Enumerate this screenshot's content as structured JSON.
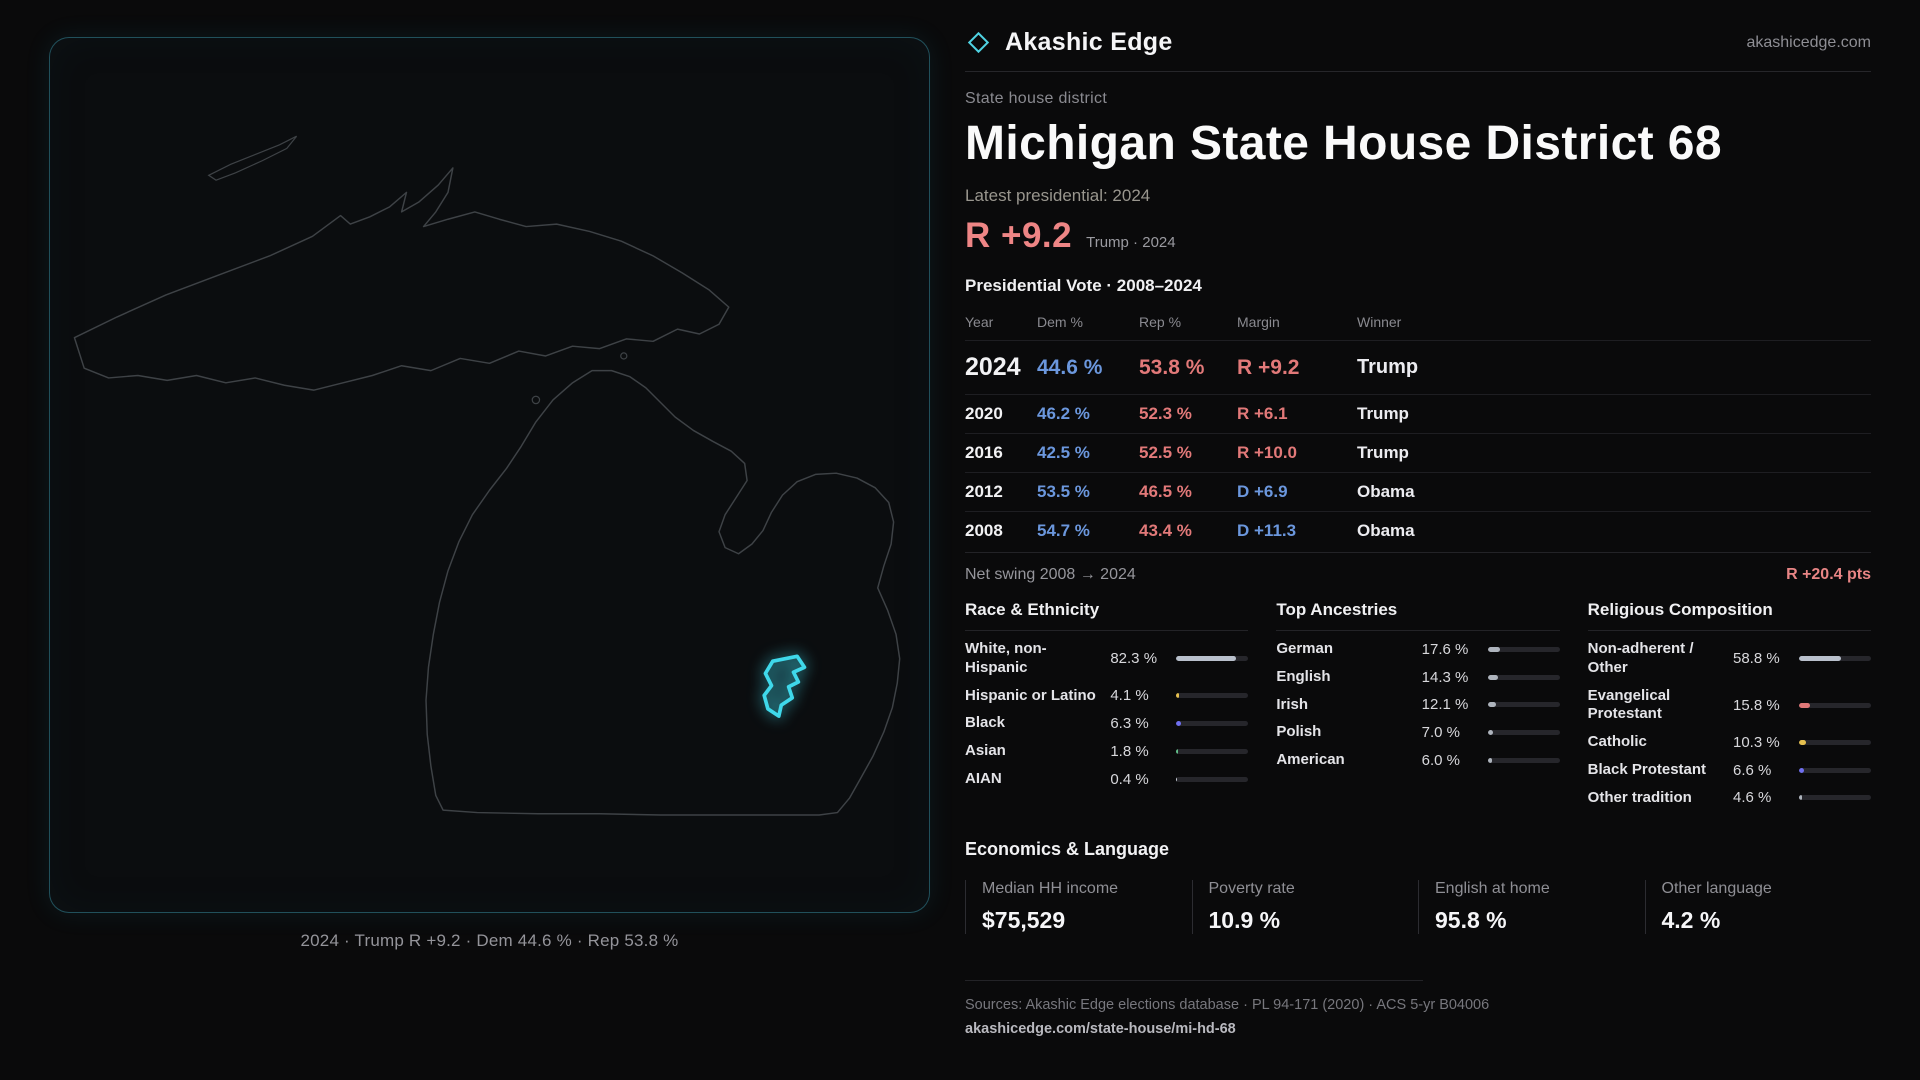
{
  "brand": {
    "name": "Akashic Edge",
    "domain": "akashicedge.com"
  },
  "page": {
    "category": "State house district",
    "title": "Michigan State House District 68",
    "latest_label": "Latest presidential: 2024",
    "headline_margin": "R +9.2",
    "headline_sub": "Trump · 2024"
  },
  "map": {
    "caption": "2024 · Trump  R +9.2 · Dem 44.6 % · Rep 53.8 %"
  },
  "vote_table": {
    "title": "Presidential Vote · 2008–2024",
    "columns": [
      "Year",
      "Dem %",
      "Rep %",
      "Margin",
      "Winner"
    ],
    "rows": [
      {
        "year": "2024",
        "dem": "44.6 %",
        "rep": "53.8 %",
        "margin": "R +9.2",
        "winner": "Trump"
      },
      {
        "year": "2020",
        "dem": "46.2 %",
        "rep": "52.3 %",
        "margin": "R +6.1",
        "winner": "Trump"
      },
      {
        "year": "2016",
        "dem": "42.5 %",
        "rep": "52.5 %",
        "margin": "R +10.0",
        "winner": "Trump"
      },
      {
        "year": "2012",
        "dem": "53.5 %",
        "rep": "46.5 %",
        "margin": "D +6.9",
        "winner": "Obama"
      },
      {
        "year": "2008",
        "dem": "54.7 %",
        "rep": "43.4 %",
        "margin": "D +11.3",
        "winner": "Obama"
      }
    ],
    "net_swing_label": "Net swing 2008 → 2024",
    "net_swing_value": "R +20.4 pts"
  },
  "race": {
    "title": "Race & Ethnicity",
    "rows": [
      {
        "label": "White, non-Hispanic",
        "value": "82.3 %",
        "pct": 82.3,
        "color": "#b9c0cc"
      },
      {
        "label": "Hispanic or Latino",
        "value": "4.1 %",
        "pct": 4.1,
        "color": "#e6c04f"
      },
      {
        "label": "Black",
        "value": "6.3 %",
        "pct": 6.3,
        "color": "#6f6ff0"
      },
      {
        "label": "Asian",
        "value": "1.8 %",
        "pct": 1.8,
        "color": "#62c08a"
      },
      {
        "label": "AIAN",
        "value": "0.4 %",
        "pct": 0.4,
        "color": "#c8cdd6"
      }
    ]
  },
  "ancestries": {
    "title": "Top Ancestries",
    "rows": [
      {
        "label": "German",
        "value": "17.6 %",
        "pct": 17.6,
        "color": "#aeb4bd"
      },
      {
        "label": "English",
        "value": "14.3 %",
        "pct": 14.3,
        "color": "#aeb4bd"
      },
      {
        "label": "Irish",
        "value": "12.1 %",
        "pct": 12.1,
        "color": "#aeb4bd"
      },
      {
        "label": "Polish",
        "value": "7.0 %",
        "pct": 7.0,
        "color": "#aeb4bd"
      },
      {
        "label": "American",
        "value": "6.0 %",
        "pct": 6.0,
        "color": "#aeb4bd"
      }
    ]
  },
  "religion": {
    "title": "Religious Composition",
    "rows": [
      {
        "label": "Non-adherent / Other",
        "value": "58.8 %",
        "pct": 58.8,
        "color": "#b9c0cc"
      },
      {
        "label": "Evangelical Protestant",
        "value": "15.8 %",
        "pct": 15.8,
        "color": "#e07878"
      },
      {
        "label": "Catholic",
        "value": "10.3 %",
        "pct": 10.3,
        "color": "#e6c04f"
      },
      {
        "label": "Black Protestant",
        "value": "6.6 %",
        "pct": 6.6,
        "color": "#6f6ff0"
      },
      {
        "label": "Other tradition",
        "value": "4.6 %",
        "pct": 4.6,
        "color": "#aeb4bd"
      }
    ]
  },
  "economics": {
    "title": "Economics & Language",
    "stats": [
      {
        "label": "Median HH income",
        "value": "$75,529"
      },
      {
        "label": "Poverty rate",
        "value": "10.9 %"
      },
      {
        "label": "English at home",
        "value": "95.8 %"
      },
      {
        "label": "Other language",
        "value": "4.2 %"
      }
    ]
  },
  "footer": {
    "sources": "Sources: Akashic Edge elections database · PL 94-171 (2020) · ACS 5-yr B04006",
    "permalink": "akashicedge.com/state-house/mi-hd-68"
  },
  "chart_data": [
    {
      "type": "table",
      "title": "Presidential Vote · 2008–2024",
      "columns": [
        "Year",
        "Dem %",
        "Rep %",
        "Margin",
        "Winner"
      ],
      "rows": [
        [
          "2024",
          44.6,
          53.8,
          "R +9.2",
          "Trump"
        ],
        [
          "2020",
          46.2,
          52.3,
          "R +6.1",
          "Trump"
        ],
        [
          "2016",
          42.5,
          52.5,
          "R +10.0",
          "Trump"
        ],
        [
          "2012",
          53.5,
          46.5,
          "D +6.9",
          "Obama"
        ],
        [
          "2008",
          54.7,
          43.4,
          "D +11.3",
          "Obama"
        ]
      ],
      "annotations": [
        "Net swing 2008 → 2024: R +20.4 pts"
      ]
    },
    {
      "type": "bar",
      "title": "Race & Ethnicity",
      "categories": [
        "White, non-Hispanic",
        "Hispanic or Latino",
        "Black",
        "Asian",
        "AIAN"
      ],
      "values": [
        82.3,
        4.1,
        6.3,
        1.8,
        0.4
      ],
      "unit": "%",
      "xlim": [
        0,
        100
      ],
      "orientation": "horizontal"
    },
    {
      "type": "bar",
      "title": "Top Ancestries",
      "categories": [
        "German",
        "English",
        "Irish",
        "Polish",
        "American"
      ],
      "values": [
        17.6,
        14.3,
        12.1,
        7.0,
        6.0
      ],
      "unit": "%",
      "xlim": [
        0,
        100
      ],
      "orientation": "horizontal"
    },
    {
      "type": "bar",
      "title": "Religious Composition",
      "categories": [
        "Non-adherent / Other",
        "Evangelical Protestant",
        "Catholic",
        "Black Protestant",
        "Other tradition"
      ],
      "values": [
        58.8,
        15.8,
        10.3,
        6.6,
        4.6
      ],
      "unit": "%",
      "xlim": [
        0,
        100
      ],
      "orientation": "horizontal"
    }
  ]
}
